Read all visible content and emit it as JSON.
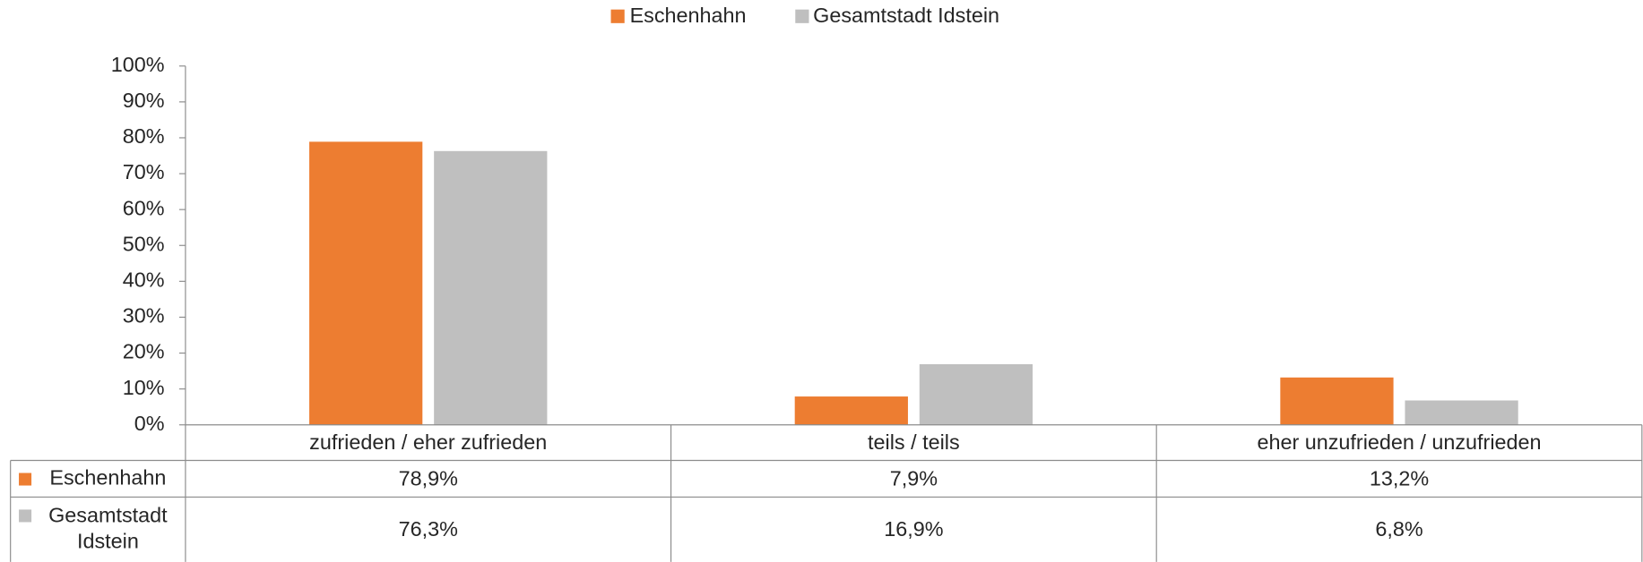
{
  "chart_data": {
    "type": "bar",
    "categories": [
      "zufrieden / eher zufrieden",
      "teils / teils",
      "eher unzufrieden / unzufrieden"
    ],
    "series": [
      {
        "name": "Eschenhahn",
        "color": "#ed7d31",
        "values": [
          78.9,
          7.9,
          13.2
        ],
        "value_labels": [
          "78,9%",
          "7,9%",
          "13,2%"
        ]
      },
      {
        "name": "Gesamtstadt Idstein",
        "color": "#bfbfbf",
        "values": [
          76.3,
          16.9,
          6.8
        ],
        "value_labels": [
          "76,3%",
          "16,9%",
          "6,8%"
        ]
      }
    ],
    "ylim": [
      0,
      100
    ],
    "yticks": [
      {
        "value": 0,
        "label": "0%"
      },
      {
        "value": 10,
        "label": "10%"
      },
      {
        "value": 20,
        "label": "20%"
      },
      {
        "value": 30,
        "label": "30%"
      },
      {
        "value": 40,
        "label": "40%"
      },
      {
        "value": 50,
        "label": "50%"
      },
      {
        "value": 60,
        "label": "60%"
      },
      {
        "value": 70,
        "label": "70%"
      },
      {
        "value": 80,
        "label": "80%"
      },
      {
        "value": 90,
        "label": "90%"
      },
      {
        "value": 100,
        "label": "100%"
      }
    ],
    "legend": "top",
    "grid": false,
    "data_table": true
  }
}
